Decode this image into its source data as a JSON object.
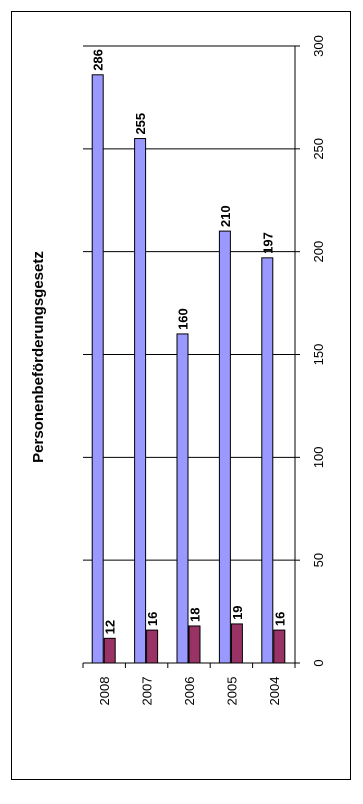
{
  "chart_data": {
    "type": "bar",
    "orientation": "horizontal",
    "title": "Personenbeförderungsgesetz",
    "categories": [
      "2008",
      "2007",
      "2006",
      "2005",
      "2004"
    ],
    "series": [
      {
        "values": [
          286,
          255,
          160,
          210,
          197
        ],
        "color": "#9999ff"
      },
      {
        "values": [
          12,
          16,
          18,
          19,
          16
        ],
        "color": "#993366"
      }
    ],
    "xlim": [
      0,
      300
    ],
    "ticks": [
      "0",
      "50",
      "100",
      "150",
      "200",
      "250",
      "300"
    ],
    "grid": true,
    "data_labels": true,
    "legend": "none"
  }
}
